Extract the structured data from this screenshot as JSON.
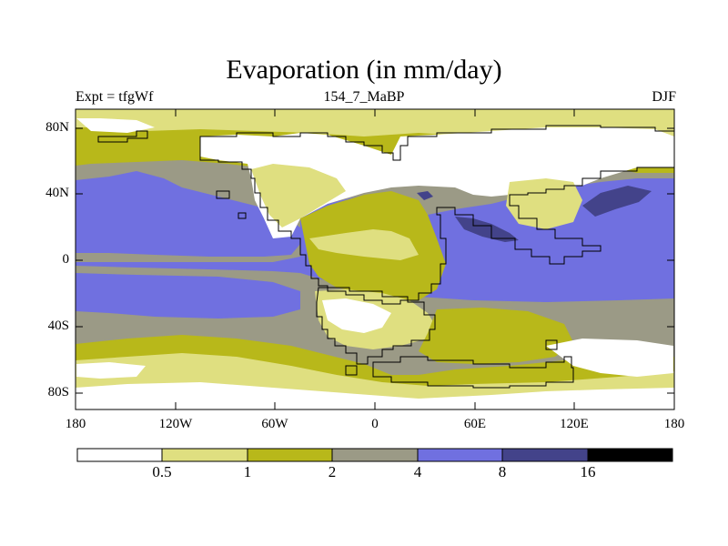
{
  "title": "Evaporation (in mm/day)",
  "subtitle_left": "Expt = tfgWf",
  "subtitle_center": "154_7_MaBP",
  "subtitle_right": "DJF",
  "map": {
    "projection": "cylindrical-equidistant",
    "lon_range": [
      -180,
      180
    ],
    "lat_range": [
      -90,
      90
    ],
    "y_ticks": [
      "80N",
      "40N",
      "0",
      "40S",
      "80S"
    ],
    "x_ticks": [
      "180",
      "120W",
      "60W",
      "0",
      "60E",
      "120E",
      "180"
    ]
  },
  "colorbar": {
    "labels": [
      "0.5",
      "1",
      "2",
      "4",
      "8",
      "16"
    ],
    "colors": [
      "#ffffff",
      "#dfdf80",
      "#b8b81a",
      "#9b9a86",
      "#7070e0",
      "#43438a",
      "#000000"
    ]
  }
}
